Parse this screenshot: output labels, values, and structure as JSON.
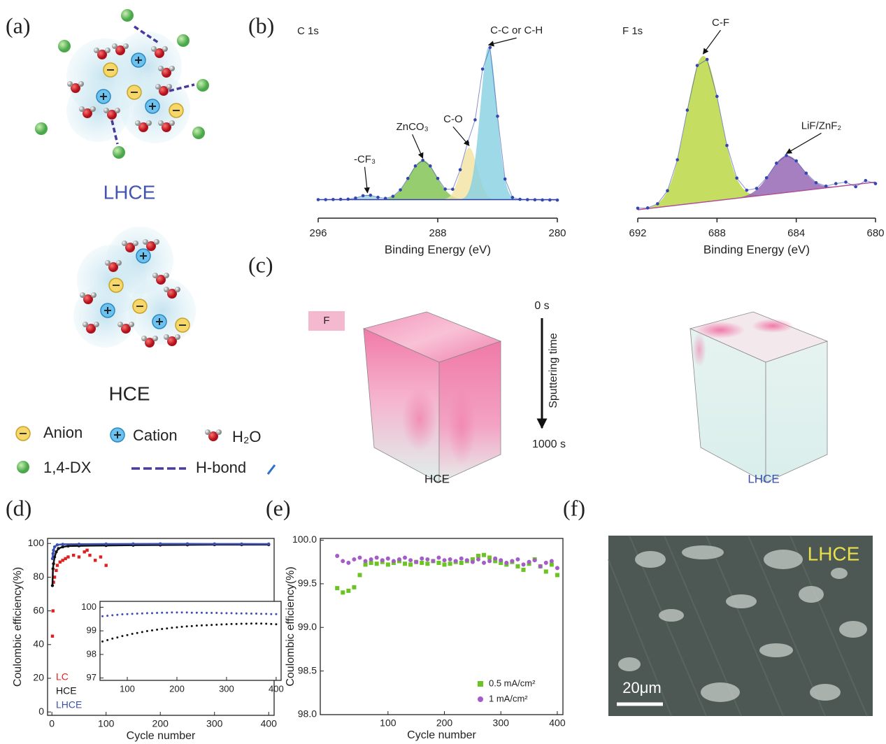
{
  "panel_labels": [
    "(a)",
    "(b)",
    "(c)",
    "(d)",
    "(e)",
    "(f)"
  ],
  "schematic": {
    "lhce_label": "LHCE",
    "hce_label": "HCE",
    "legend": [
      "Anion",
      "Cation",
      "H₂O",
      "1,4-DX",
      "H-bond"
    ]
  },
  "tof_sims": {
    "element": "F",
    "time_start": "0 s",
    "time_axis": "Sputtering time",
    "time_end": "1000 s",
    "samples": [
      "HCE",
      "LHCE"
    ]
  },
  "sem": {
    "label": "LHCE",
    "scale_bar": "20μm"
  },
  "chart_data": [
    {
      "type": "spectrum",
      "title": "C 1s",
      "x_label": "Binding Energy (eV)",
      "xlim": [
        296,
        280
      ],
      "xticks": [
        296,
        288,
        280
      ],
      "ylim": [
        0,
        100
      ],
      "x": [
        296,
        295.5,
        295,
        294.5,
        294,
        293.5,
        293,
        292.5,
        292,
        291.5,
        291,
        290.5,
        290,
        289.5,
        289,
        288.5,
        288,
        287.5,
        287,
        286.5,
        286,
        285.5,
        285,
        284.5,
        284,
        283.5,
        283,
        282.5,
        282,
        281.5,
        281,
        280.5,
        280
      ],
      "series": [
        {
          "color": "#3447b0",
          "values": [
            2,
            2,
            2.1,
            2.2,
            2.3,
            3,
            4.5,
            4.8,
            3.5,
            2.8,
            4.1,
            8.2,
            15.5,
            23.4,
            27,
            23.4,
            15.5,
            8.7,
            8.6,
            21,
            38.3,
            52.7,
            85,
            98.7,
            55,
            15.1,
            3.4,
            2.2,
            2,
            1.9,
            1.8,
            1.8,
            1.7
          ]
        }
      ],
      "baseline": [
        2,
        2
      ],
      "baseline_color": "#2c3fa8",
      "peaks": [
        {
          "label": "-CF₃",
          "center": 292.7,
          "height": 3,
          "width": 0.5,
          "color": "#9ecfd6"
        },
        {
          "label": "ZnCO₃",
          "center": 289,
          "height": 25,
          "width": 0.9,
          "color": "#7cc04a"
        },
        {
          "label": "C-O",
          "center": 285.9,
          "height": 33,
          "width": 0.55,
          "color": "#f2e2a0"
        },
        {
          "label": "C-C or C-H",
          "center": 284.6,
          "height": 97,
          "width": 0.55,
          "color": "#86d0e2"
        }
      ]
    },
    {
      "type": "spectrum",
      "title": "F 1s",
      "x_label": "Binding Energy (eV)",
      "xlim": [
        692,
        680
      ],
      "xticks": [
        692,
        688,
        684,
        680
      ],
      "ylim": [
        0,
        100
      ],
      "x": [
        692,
        691.5,
        691,
        690.5,
        690,
        689.5,
        689,
        688.5,
        688,
        687.5,
        687,
        686.5,
        686,
        685.5,
        685,
        684.5,
        684,
        683.5,
        683,
        682.5,
        682,
        681.5,
        681,
        680.5,
        680
      ],
      "series": [
        {
          "color": "#3447b0",
          "values": [
            1,
            1.2,
            3.9,
            12.4,
            32.5,
            64.8,
            93.8,
            97.7,
            73.7,
            41.8,
            20.6,
            12.7,
            13.9,
            20.8,
            30.3,
            35.3,
            31.8,
            23.8,
            17.6,
            15.4,
            17,
            18,
            15,
            19,
            17
          ]
        }
      ],
      "baseline": [
        0,
        18
      ],
      "baseline_color": "#b0509a",
      "peaks": [
        {
          "label": "C-F",
          "center": 688.7,
          "height": 95,
          "width": 0.85,
          "color": "#b6d43a"
        },
        {
          "label": "LiF/ZnF₂",
          "center": 684.5,
          "height": 24,
          "width": 0.8,
          "color": "#8e5fb0"
        }
      ]
    },
    {
      "type": "line",
      "x_label": "Cycle number",
      "y_label": "Coulombic efficiency(%)",
      "xlim": [
        -8,
        410
      ],
      "xticks": [
        0,
        100,
        200,
        300,
        400
      ],
      "ylim": [
        -2,
        103
      ],
      "yticks": [
        0,
        20,
        40,
        60,
        80,
        100
      ],
      "legend": "lower left",
      "legend_style": "text",
      "series": [
        {
          "name": "LC",
          "color": "#e02020",
          "marker": "square",
          "line": false,
          "x": [
            1,
            2,
            3,
            5,
            8,
            10,
            15,
            20,
            25,
            30,
            40,
            50,
            60,
            65,
            70,
            80,
            90,
            100
          ],
          "values": [
            45,
            60,
            77,
            80,
            84,
            87,
            89,
            90,
            91,
            92,
            93,
            92,
            95,
            96,
            93,
            90,
            92,
            87
          ]
        },
        {
          "name": "HCE",
          "color": "#111111",
          "marker": "circle",
          "line": true,
          "x": [
            1,
            2,
            3,
            5,
            8,
            12,
            20,
            30,
            50,
            100,
            150,
            200,
            250,
            300,
            350,
            400
          ],
          "values": [
            75,
            85,
            88,
            92,
            95,
            97,
            98,
            98.5,
            98.6,
            98.8,
            99,
            99.1,
            99.2,
            99.3,
            99.3,
            99.3
          ]
        },
        {
          "name": "LHCE",
          "color": "#3a4fb0",
          "marker": "circle",
          "line": true,
          "x": [
            1,
            2,
            3,
            5,
            10,
            20,
            50,
            100,
            150,
            200,
            250,
            300,
            350,
            400
          ],
          "values": [
            91,
            94,
            96,
            98,
            99.2,
            99.5,
            99.6,
            99.7,
            99.75,
            99.8,
            99.8,
            99.75,
            99.72,
            99.7
          ]
        }
      ]
    },
    {
      "type": "line",
      "xlim": [
        45,
        410
      ],
      "xticks": [
        100,
        200,
        300,
        400
      ],
      "ylim": [
        96.9,
        100.25
      ],
      "yticks": [
        97,
        98,
        99,
        100
      ],
      "x": [
        50,
        60,
        70,
        80,
        90,
        100,
        110,
        120,
        130,
        140,
        150,
        160,
        170,
        180,
        190,
        200,
        210,
        220,
        230,
        240,
        250,
        260,
        270,
        280,
        290,
        300,
        310,
        320,
        330,
        340,
        350,
        360,
        370,
        380,
        390,
        400
      ],
      "series": [
        {
          "color": "#111111",
          "marker": "circle",
          "line": false,
          "values": [
            98.55,
            98.61,
            98.67,
            98.72,
            98.78,
            98.82,
            98.87,
            98.91,
            98.95,
            98.99,
            99.02,
            99.05,
            99.08,
            99.1,
            99.13,
            99.15,
            99.17,
            99.19,
            99.2,
            99.22,
            99.23,
            99.24,
            99.25,
            99.26,
            99.27,
            99.28,
            99.29,
            99.29,
            99.3,
            99.3,
            99.31,
            99.31,
            99.31,
            99.3,
            99.29,
            99.28
          ]
        },
        {
          "color": "#3a4fb0",
          "marker": "circle",
          "line": false,
          "values": [
            99.62,
            99.64,
            99.66,
            99.68,
            99.7,
            99.71,
            99.72,
            99.73,
            99.74,
            99.75,
            99.75,
            99.76,
            99.77,
            99.77,
            99.78,
            99.78,
            99.78,
            99.78,
            99.77,
            99.77,
            99.77,
            99.76,
            99.76,
            99.76,
            99.75,
            99.75,
            99.75,
            99.74,
            99.74,
            99.74,
            99.73,
            99.73,
            99.72,
            99.72,
            99.71,
            99.71
          ]
        }
      ]
    },
    {
      "type": "scatter",
      "x_label": "Cycle number",
      "y_label": "Coulombic efficiency(%)",
      "xlim": [
        -20,
        410
      ],
      "xticks": [
        100,
        200,
        300,
        400
      ],
      "ylim": [
        98,
        100.02
      ],
      "yticks": [
        {
          "value": 98,
          "label": "98.0"
        },
        98.5,
        {
          "value": 99,
          "label": "99.0"
        },
        99.5,
        {
          "value": 100,
          "label": "100.0"
        }
      ],
      "legend": "lower right",
      "legend_style": "marker",
      "x": [
        10,
        20,
        30,
        40,
        50,
        60,
        70,
        80,
        90,
        100,
        110,
        120,
        130,
        140,
        150,
        160,
        170,
        180,
        190,
        200,
        210,
        220,
        230,
        240,
        250,
        260,
        270,
        280,
        290,
        300,
        310,
        320,
        330,
        340,
        350,
        360,
        370,
        380,
        390,
        400
      ],
      "series": [
        {
          "name": "0.5 mA/cm²",
          "color": "#6cc424",
          "marker": "square",
          "values": [
            99.45,
            99.4,
            99.42,
            99.46,
            99.6,
            99.72,
            99.74,
            99.73,
            99.75,
            99.72,
            99.74,
            99.76,
            99.73,
            99.72,
            99.75,
            99.74,
            99.73,
            99.76,
            99.74,
            99.72,
            99.73,
            99.75,
            99.74,
            99.76,
            99.78,
            99.82,
            99.83,
            99.8,
            99.76,
            99.74,
            99.72,
            99.75,
            99.7,
            99.66,
            99.73,
            99.78,
            99.7,
            99.64,
            99.72,
            99.6
          ]
        },
        {
          "name": "1 mA/cm²",
          "color": "#a45cc8",
          "marker": "circle",
          "values": [
            99.82,
            99.76,
            99.74,
            99.78,
            99.8,
            99.76,
            99.78,
            99.8,
            99.77,
            99.79,
            99.76,
            99.78,
            99.8,
            99.77,
            99.75,
            99.79,
            99.78,
            99.76,
            99.8,
            99.77,
            99.78,
            99.76,
            99.79,
            99.77,
            99.75,
            99.78,
            99.74,
            99.76,
            99.79,
            99.77,
            99.74,
            99.76,
            99.78,
            99.72,
            99.75,
            99.77,
            99.7,
            99.74,
            99.76,
            99.68
          ]
        }
      ]
    }
  ]
}
